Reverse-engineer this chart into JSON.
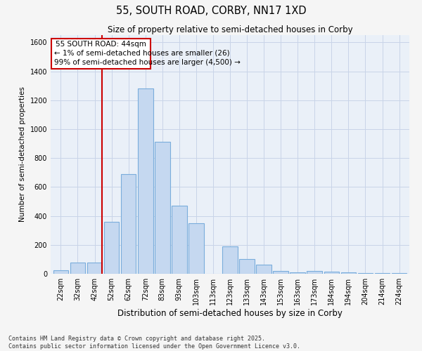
{
  "title1": "55, SOUTH ROAD, CORBY, NN17 1XD",
  "title2": "Size of property relative to semi-detached houses in Corby",
  "xlabel": "Distribution of semi-detached houses by size in Corby",
  "ylabel": "Number of semi-detached properties",
  "categories": [
    "22sqm",
    "32sqm",
    "42sqm",
    "52sqm",
    "62sqm",
    "72sqm",
    "83sqm",
    "93sqm",
    "103sqm",
    "113sqm",
    "123sqm",
    "133sqm",
    "143sqm",
    "153sqm",
    "163sqm",
    "173sqm",
    "184sqm",
    "194sqm",
    "204sqm",
    "214sqm",
    "224sqm"
  ],
  "values": [
    25,
    80,
    80,
    360,
    690,
    1280,
    910,
    470,
    350,
    0,
    190,
    100,
    65,
    20,
    10,
    20,
    15,
    10,
    5,
    5,
    5
  ],
  "bar_color": "#c5d8f0",
  "bar_edge_color": "#7aaddc",
  "grid_color": "#c8d4e8",
  "bg_color": "#eaf0f8",
  "annotation_text_line1": "55 SOUTH ROAD: 44sqm",
  "annotation_text_line2": "← 1% of semi-detached houses are smaller (26)",
  "annotation_text_line3": "99% of semi-detached houses are larger (4,500) →",
  "red_line_index": 2.5,
  "ylim": [
    0,
    1650
  ],
  "yticks": [
    0,
    200,
    400,
    600,
    800,
    1000,
    1200,
    1400,
    1600
  ],
  "footnote1": "Contains HM Land Registry data © Crown copyright and database right 2025.",
  "footnote2": "Contains public sector information licensed under the Open Government Licence v3.0.",
  "fig_bg": "#f5f5f5"
}
